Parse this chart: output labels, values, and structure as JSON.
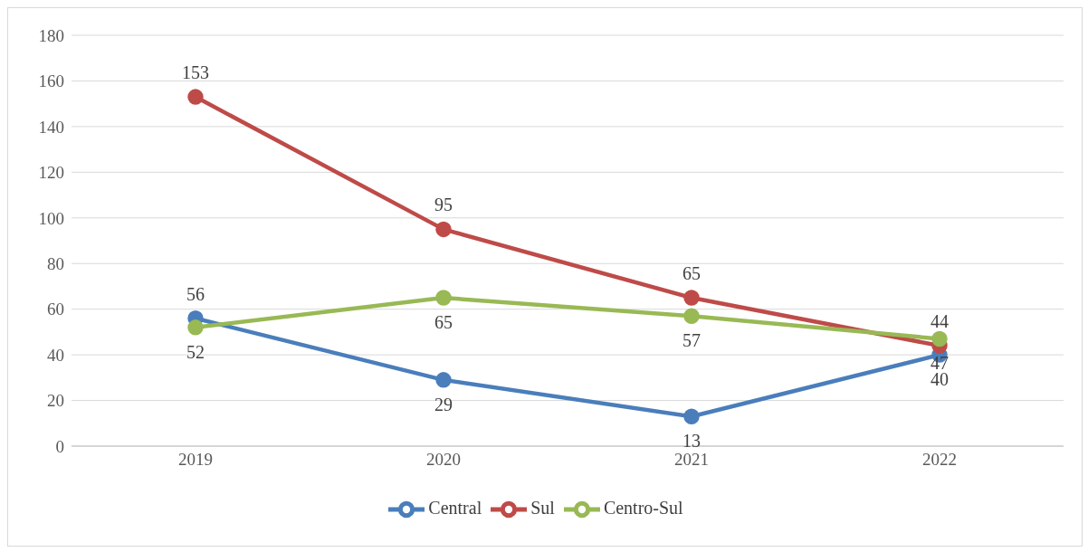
{
  "chart_data": {
    "type": "line",
    "categories": [
      "2019",
      "2020",
      "2021",
      "2022"
    ],
    "series": [
      {
        "name": "Central",
        "color": "#4a7ebb",
        "values": [
          56,
          29,
          13,
          40
        ]
      },
      {
        "name": "Sul",
        "color": "#be4b48",
        "values": [
          153,
          95,
          65,
          44
        ]
      },
      {
        "name": "Centro-Sul",
        "color": "#98b954",
        "values": [
          52,
          65,
          57,
          47
        ]
      }
    ],
    "ylim": [
      0,
      180
    ],
    "yticks": [
      0,
      20,
      40,
      60,
      80,
      100,
      120,
      140,
      160,
      180
    ],
    "grid": "y",
    "legend": "bottom",
    "marker": "circle",
    "line_style": "solid",
    "data_labels": true
  }
}
